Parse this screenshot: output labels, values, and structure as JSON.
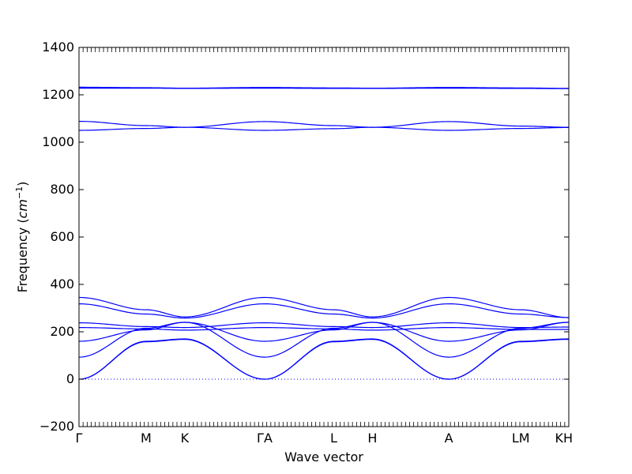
{
  "chart_data": {
    "type": "line",
    "xlabel": "Wave vector",
    "ylabel_text": "Frequency (",
    "ylabel_unit": "cm",
    "ylabel_exp": "−1",
    "ylabel_close": ")",
    "ylim": [
      -200,
      1400
    ],
    "xlim": [
      0,
      1
    ],
    "yticks": [
      -200,
      0,
      200,
      400,
      600,
      800,
      1000,
      1200,
      1400
    ],
    "ytick_labels": [
      "−200",
      "0",
      "200",
      "400",
      "600",
      "800",
      "1000",
      "1200",
      "1400"
    ],
    "xticks": [
      {
        "label": "Γ",
        "x": 0.0
      },
      {
        "label": "M",
        "x": 0.137
      },
      {
        "label": "K",
        "x": 0.216
      },
      {
        "label": "ΓA",
        "x": 0.379
      },
      {
        "label": "L",
        "x": 0.52
      },
      {
        "label": "H",
        "x": 0.599
      },
      {
        "label": "A",
        "x": 0.755
      },
      {
        "label": "LM",
        "x": 0.902
      },
      {
        "label": "KH",
        "x": 0.99
      }
    ],
    "zero_line": {
      "y": 0,
      "style": "dotted",
      "color": "#0000ff"
    },
    "line_color": "#0000ff",
    "series": [
      {
        "points": [
          [
            0,
            1228
          ],
          [
            0.137,
            1228
          ],
          [
            0.216,
            1227
          ],
          [
            0.379,
            1228
          ],
          [
            0.52,
            1227
          ],
          [
            0.599,
            1227
          ],
          [
            0.755,
            1228
          ],
          [
            0.902,
            1227
          ],
          [
            1.0,
            1226
          ]
        ]
      },
      {
        "points": [
          [
            0,
            1232
          ],
          [
            0.137,
            1230
          ],
          [
            0.216,
            1228
          ],
          [
            0.379,
            1231
          ],
          [
            0.52,
            1229
          ],
          [
            0.599,
            1228
          ],
          [
            0.755,
            1231
          ],
          [
            0.902,
            1229
          ],
          [
            1.0,
            1227
          ]
        ]
      },
      {
        "points": [
          [
            0,
            1088
          ],
          [
            0.137,
            1070
          ],
          [
            0.216,
            1063
          ],
          [
            0.379,
            1087
          ],
          [
            0.52,
            1070
          ],
          [
            0.599,
            1063
          ],
          [
            0.755,
            1087
          ],
          [
            0.902,
            1068
          ],
          [
            1.0,
            1063
          ]
        ]
      },
      {
        "points": [
          [
            0,
            1050
          ],
          [
            0.137,
            1058
          ],
          [
            0.216,
            1063
          ],
          [
            0.379,
            1050
          ],
          [
            0.52,
            1057
          ],
          [
            0.599,
            1063
          ],
          [
            0.755,
            1050
          ],
          [
            0.902,
            1058
          ],
          [
            1.0,
            1062
          ]
        ]
      },
      {
        "points": [
          [
            0,
            345
          ],
          [
            0.137,
            293
          ],
          [
            0.216,
            263
          ],
          [
            0.379,
            345
          ],
          [
            0.52,
            293
          ],
          [
            0.599,
            263
          ],
          [
            0.755,
            345
          ],
          [
            0.902,
            293
          ],
          [
            1.0,
            260
          ]
        ]
      },
      {
        "points": [
          [
            0,
            318
          ],
          [
            0.137,
            275
          ],
          [
            0.216,
            258
          ],
          [
            0.379,
            318
          ],
          [
            0.52,
            275
          ],
          [
            0.599,
            258
          ],
          [
            0.755,
            318
          ],
          [
            0.902,
            275
          ],
          [
            1.0,
            260
          ]
        ]
      },
      {
        "points": [
          [
            0,
            238
          ],
          [
            0.137,
            222
          ],
          [
            0.216,
            218
          ],
          [
            0.379,
            238
          ],
          [
            0.52,
            222
          ],
          [
            0.599,
            218
          ],
          [
            0.755,
            238
          ],
          [
            0.902,
            218
          ],
          [
            1.0,
            220
          ]
        ]
      },
      {
        "points": [
          [
            0,
            218
          ],
          [
            0.137,
            212
          ],
          [
            0.216,
            207
          ],
          [
            0.379,
            218
          ],
          [
            0.52,
            212
          ],
          [
            0.599,
            207
          ],
          [
            0.755,
            218
          ],
          [
            0.902,
            210
          ],
          [
            1.0,
            210
          ]
        ]
      },
      {
        "points": [
          [
            0,
            160
          ],
          [
            0.137,
            208
          ],
          [
            0.216,
            240
          ],
          [
            0.379,
            160
          ],
          [
            0.52,
            208
          ],
          [
            0.599,
            240
          ],
          [
            0.755,
            160
          ],
          [
            0.902,
            208
          ],
          [
            1.0,
            240
          ]
        ]
      },
      {
        "points": [
          [
            0,
            93
          ],
          [
            0.137,
            215
          ],
          [
            0.216,
            240
          ],
          [
            0.379,
            93
          ],
          [
            0.52,
            215
          ],
          [
            0.599,
            240
          ],
          [
            0.755,
            93
          ],
          [
            0.902,
            215
          ],
          [
            1.0,
            240
          ]
        ]
      },
      {
        "points": [
          [
            0,
            0
          ],
          [
            0.137,
            158
          ],
          [
            0.216,
            168
          ],
          [
            0.379,
            0
          ],
          [
            0.52,
            158
          ],
          [
            0.599,
            168
          ],
          [
            0.755,
            0
          ],
          [
            0.902,
            158
          ],
          [
            1.0,
            168
          ]
        ]
      },
      {
        "points": [
          [
            0,
            0
          ],
          [
            0.137,
            160
          ],
          [
            0.216,
            170
          ],
          [
            0.379,
            0
          ],
          [
            0.52,
            160
          ],
          [
            0.599,
            170
          ],
          [
            0.755,
            0
          ],
          [
            0.902,
            160
          ],
          [
            1.0,
            170
          ]
        ]
      }
    ]
  }
}
